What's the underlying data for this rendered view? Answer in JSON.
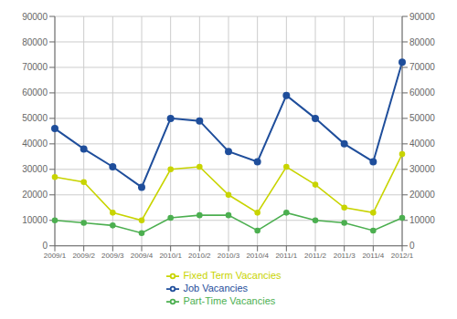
{
  "chart_data": {
    "type": "line",
    "categories": [
      "2009/1",
      "2009/2",
      "2009/3",
      "2009/4",
      "2010/1",
      "2010/2",
      "2010/3",
      "2010/4",
      "2011/1",
      "2011/2",
      "2011/3",
      "2011/4",
      "2012/1"
    ],
    "series": [
      {
        "name": "Job Vacancies",
        "color": "#1F4E9B",
        "marker": "circle",
        "values": [
          46000,
          38000,
          31000,
          23000,
          50000,
          49000,
          37000,
          33000,
          59000,
          50000,
          40000,
          33000,
          72000
        ]
      },
      {
        "name": "Part-Time Vacancies",
        "color": "#4CAF50",
        "marker": "circle",
        "values": [
          10000,
          9000,
          8000,
          5000,
          11000,
          12000,
          12000,
          6000,
          13000,
          10000,
          9000,
          6000,
          11000
        ]
      },
      {
        "name": "Fixed Term Vacancies",
        "color": "#C8D400",
        "marker": "circle",
        "values": [
          27000,
          25000,
          13000,
          10000,
          30000,
          31000,
          20000,
          13000,
          31000,
          24000,
          15000,
          13000,
          36000
        ]
      }
    ],
    "ylim": [
      0,
      90000
    ],
    "yticks": [
      0,
      10000,
      20000,
      30000,
      40000,
      50000,
      60000,
      70000,
      80000,
      90000
    ],
    "y2lim": [
      0,
      90000
    ],
    "y2ticks": [
      0,
      10000,
      20000,
      30000,
      40000,
      50000,
      60000,
      70000,
      80000,
      90000
    ],
    "grid": true,
    "legend": "bottom"
  }
}
